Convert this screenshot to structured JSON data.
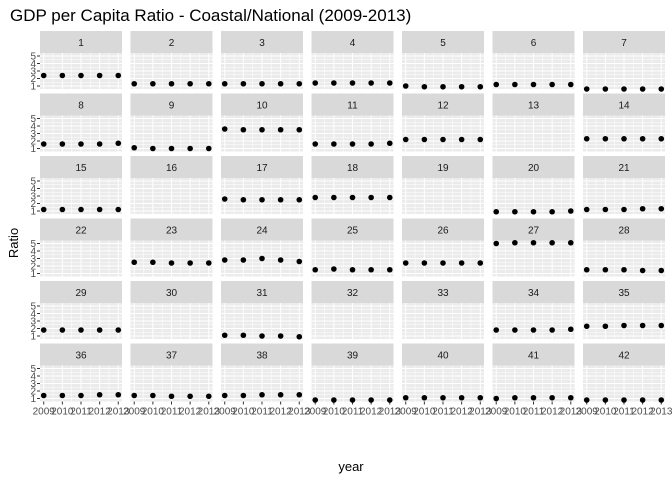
{
  "chart_data": {
    "type": "scatter",
    "title": "GDP per Capita Ratio - Coastal/National (2009-2013)",
    "xlabel": "year",
    "ylabel": "Ratio",
    "x": [
      2009,
      2010,
      2011,
      2012,
      2013
    ],
    "x_tick_labels": [
      "2009",
      "2010",
      "2011",
      "2012",
      "2013"
    ],
    "y_tick_labels": [
      "1",
      "2",
      "3",
      "4",
      "5"
    ],
    "xlim": [
      2008.8,
      2013.2
    ],
    "ylim": [
      0.6,
      5.4
    ],
    "grid": true,
    "facets": [
      {
        "label": "1",
        "values": [
          2.4,
          2.4,
          2.4,
          2.4,
          2.4
        ]
      },
      {
        "label": "2",
        "values": [
          1.3,
          1.3,
          1.3,
          1.3,
          1.3
        ]
      },
      {
        "label": "3",
        "values": [
          1.3,
          1.3,
          1.3,
          1.3,
          1.3
        ]
      },
      {
        "label": "4",
        "values": [
          1.4,
          1.4,
          1.4,
          1.4,
          1.4
        ]
      },
      {
        "label": "5",
        "values": [
          1.0,
          0.9,
          0.9,
          0.9,
          0.9
        ]
      },
      {
        "label": "6",
        "values": [
          1.2,
          1.2,
          1.2,
          1.2,
          1.2
        ]
      },
      {
        "label": "7",
        "values": [
          0.6,
          0.6,
          0.6,
          0.6,
          0.6
        ]
      },
      {
        "label": "8",
        "values": [
          1.6,
          1.6,
          1.6,
          1.6,
          1.7
        ]
      },
      {
        "label": "9",
        "values": [
          1.1,
          1.0,
          1.0,
          1.0,
          1.0
        ]
      },
      {
        "label": "10",
        "values": [
          3.6,
          3.5,
          3.5,
          3.5,
          3.5
        ]
      },
      {
        "label": "11",
        "values": [
          1.6,
          1.6,
          1.6,
          1.6,
          1.7
        ]
      },
      {
        "label": "12",
        "values": [
          2.2,
          2.2,
          2.2,
          2.2,
          2.2
        ]
      },
      {
        "label": "13",
        "values": [
          null,
          null,
          null,
          null,
          null
        ]
      },
      {
        "label": "14",
        "values": [
          2.3,
          2.3,
          2.3,
          2.3,
          2.3
        ]
      },
      {
        "label": "15",
        "values": [
          1.2,
          1.2,
          1.2,
          1.2,
          1.2
        ]
      },
      {
        "label": "16",
        "values": [
          null,
          null,
          null,
          null,
          null
        ]
      },
      {
        "label": "17",
        "values": [
          2.6,
          2.5,
          2.5,
          2.5,
          2.5
        ]
      },
      {
        "label": "18",
        "values": [
          2.8,
          2.8,
          2.8,
          2.8,
          2.8
        ]
      },
      {
        "label": "19",
        "values": [
          null,
          null,
          null,
          null,
          null
        ]
      },
      {
        "label": "20",
        "values": [
          0.9,
          0.9,
          0.9,
          0.9,
          1.0
        ]
      },
      {
        "label": "21",
        "values": [
          1.2,
          1.2,
          1.2,
          1.3,
          1.3
        ]
      },
      {
        "label": "22",
        "values": [
          null,
          null,
          null,
          null,
          null
        ]
      },
      {
        "label": "23",
        "values": [
          2.5,
          2.5,
          2.4,
          2.4,
          2.4
        ]
      },
      {
        "label": "24",
        "values": [
          2.8,
          2.8,
          3.0,
          2.8,
          2.6
        ]
      },
      {
        "label": "25",
        "values": [
          1.5,
          1.6,
          1.5,
          1.5,
          1.5
        ]
      },
      {
        "label": "26",
        "values": [
          2.4,
          2.4,
          2.4,
          2.4,
          2.4
        ]
      },
      {
        "label": "27",
        "values": [
          5.0,
          5.1,
          5.1,
          5.1,
          5.1
        ]
      },
      {
        "label": "28",
        "values": [
          1.5,
          1.5,
          1.5,
          1.4,
          1.4
        ]
      },
      {
        "label": "29",
        "values": [
          1.8,
          1.8,
          1.8,
          1.8,
          1.8
        ]
      },
      {
        "label": "30",
        "values": [
          null,
          null,
          null,
          null,
          null
        ]
      },
      {
        "label": "31",
        "values": [
          1.1,
          1.1,
          1.0,
          1.0,
          0.9
        ]
      },
      {
        "label": "32",
        "values": [
          null,
          null,
          null,
          null,
          null
        ]
      },
      {
        "label": "33",
        "values": [
          null,
          null,
          null,
          null,
          null
        ]
      },
      {
        "label": "34",
        "values": [
          1.8,
          1.8,
          1.8,
          1.8,
          1.9
        ]
      },
      {
        "label": "35",
        "values": [
          2.3,
          2.3,
          2.4,
          2.4,
          2.4
        ]
      },
      {
        "label": "36",
        "values": [
          1.4,
          1.4,
          1.4,
          1.5,
          1.5
        ]
      },
      {
        "label": "37",
        "values": [
          1.4,
          1.4,
          1.3,
          1.3,
          1.3
        ]
      },
      {
        "label": "38",
        "values": [
          1.4,
          1.4,
          1.5,
          1.5,
          1.5
        ]
      },
      {
        "label": "39",
        "values": [
          0.8,
          0.8,
          0.8,
          0.8,
          0.8
        ]
      },
      {
        "label": "40",
        "values": [
          1.1,
          1.1,
          1.1,
          1.1,
          1.1
        ]
      },
      {
        "label": "41",
        "values": [
          1.0,
          1.1,
          1.1,
          1.1,
          1.1
        ]
      },
      {
        "label": "42",
        "values": [
          0.8,
          0.8,
          0.8,
          0.8,
          0.8
        ]
      }
    ]
  }
}
